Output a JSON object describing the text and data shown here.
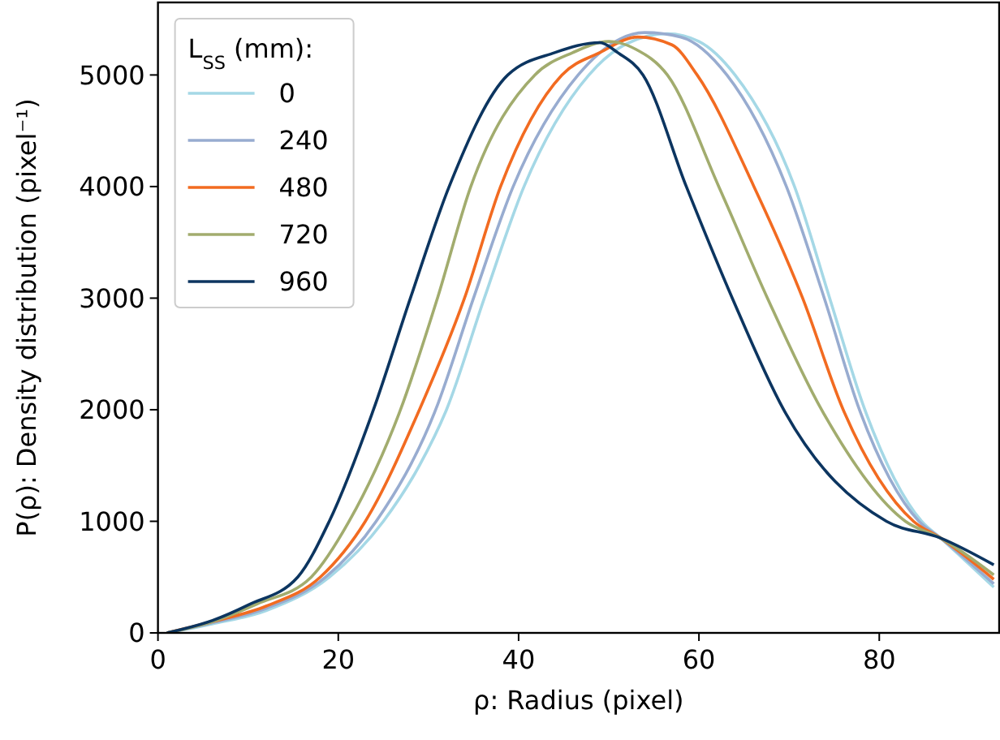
{
  "chart_data": {
    "type": "line",
    "xlabel": "ρ: Radius (pixel)",
    "ylabel": "P(ρ): Density distribution (pixel⁻¹)",
    "legend_title": "L$_{SS}$ (mm):",
    "legend": "top left",
    "grid": false,
    "xlim": [
      0,
      93.3
    ],
    "ylim": [
      0,
      5650
    ],
    "xticks": [
      0,
      20,
      40,
      60,
      80
    ],
    "yticks": [
      0,
      1000,
      2000,
      3000,
      4000,
      5000
    ],
    "series": [
      {
        "name": "0",
        "color": "#a5d8e6",
        "x": [
          1,
          6,
          12,
          19,
          25,
          29,
          32,
          36.2,
          40.6,
          47.8,
          52,
          56.5,
          60,
          64,
          70.6,
          74.5,
          78.4,
          84.7,
          86.8,
          92.7
        ],
        "values": [
          0,
          80,
          200,
          500,
          1000,
          1500,
          2000,
          3000,
          4000,
          5000,
          5280,
          5370,
          5300,
          5000,
          4000,
          3000,
          2000,
          1000,
          850,
          410
        ]
      },
      {
        "name": "240",
        "color": "#98acd0",
        "x": [
          1,
          6,
          12,
          18.6,
          24.2,
          30.8,
          35,
          39.4,
          46.6,
          54,
          58,
          63.1,
          69.7,
          73.9,
          77.8,
          84.4,
          86.8,
          92.7
        ],
        "values": [
          0,
          90,
          220,
          500,
          1000,
          2000,
          3000,
          4000,
          5000,
          5380,
          5340,
          5000,
          4000,
          3000,
          2000,
          1000,
          850,
          440
        ]
      },
      {
        "name": "480",
        "color": "#f26b21",
        "x": [
          1,
          6,
          12,
          18,
          23,
          29,
          34,
          38,
          44.8,
          49,
          53.2,
          57,
          59.8,
          66.1,
          71.5,
          76,
          83.8,
          86.8,
          92.7
        ],
        "values": [
          0,
          100,
          240,
          500,
          1000,
          2000,
          3000,
          4000,
          5000,
          5200,
          5340,
          5270,
          5000,
          4000,
          3000,
          2000,
          1000,
          850,
          480
        ]
      },
      {
        "name": "720",
        "color": "#a2ac6e",
        "x": [
          1,
          6,
          11,
          17,
          21.2,
          26.9,
          31,
          34.7,
          41.8,
          46,
          50,
          53,
          56.5,
          62.2,
          67.6,
          73.6,
          82.9,
          86.8,
          92.7
        ],
        "values": [
          0,
          100,
          260,
          500,
          1000,
          2000,
          3000,
          4000,
          5000,
          5200,
          5300,
          5230,
          5000,
          4000,
          3000,
          2000,
          1000,
          850,
          520
        ]
      },
      {
        "name": "960",
        "color": "#0c3560",
        "x": [
          1,
          6,
          10,
          15.5,
          19,
          23.9,
          28,
          32.3,
          38.8,
          44,
          49,
          51,
          53.8,
          58.6,
          63.7,
          69.4,
          80.8,
          86.8,
          92.7
        ],
        "values": [
          0,
          110,
          250,
          500,
          1000,
          2000,
          3000,
          4000,
          5000,
          5200,
          5290,
          5200,
          5000,
          4000,
          3000,
          2000,
          1000,
          850,
          610
        ]
      }
    ]
  }
}
